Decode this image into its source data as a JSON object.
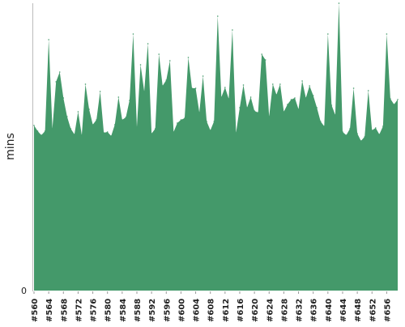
{
  "chart_data": {
    "type": "area",
    "ylabel": "mins",
    "x_start": 560,
    "x_end": 659,
    "x_tick_labels": [
      "#560",
      "#564",
      "#568",
      "#572",
      "#576",
      "#580",
      "#584",
      "#588",
      "#592",
      "#596",
      "#600",
      "#604",
      "#608",
      "#612",
      "#616",
      "#620",
      "#624",
      "#628",
      "#632",
      "#636",
      "#640",
      "#644",
      "#648",
      "#652",
      "#656"
    ],
    "y_tick_labels": [
      "0"
    ],
    "ylim": [
      0,
      355
    ],
    "values": [
      204,
      197,
      192,
      197,
      310,
      200,
      258,
      270,
      238,
      215,
      200,
      193,
      221,
      192,
      255,
      224,
      205,
      211,
      246,
      195,
      196,
      191,
      205,
      239,
      211,
      214,
      235,
      317,
      202,
      279,
      246,
      305,
      194,
      200,
      292,
      253,
      260,
      284,
      196,
      207,
      211,
      213,
      288,
      250,
      250,
      220,
      265,
      209,
      198,
      209,
      339,
      239,
      251,
      237,
      322,
      195,
      226,
      254,
      226,
      239,
      222,
      220,
      292,
      285,
      215,
      255,
      242,
      255,
      221,
      230,
      236,
      238,
      224,
      259,
      238,
      253,
      241,
      226,
      209,
      203,
      317,
      229,
      217,
      355,
      196,
      192,
      200,
      250,
      194,
      185,
      190,
      247,
      198,
      201,
      193,
      203,
      317,
      237,
      230,
      236
    ],
    "fill_color": "#44996a",
    "grid": false,
    "legend": "none"
  }
}
